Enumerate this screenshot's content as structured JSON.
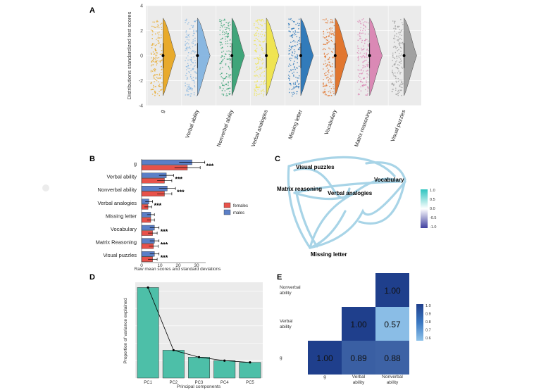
{
  "chart_data": [
    {
      "panel": "A",
      "type": "violin",
      "ylabel": "Distributions standardized test scores",
      "ylim": [
        -4,
        4
      ],
      "yticks": [
        -4,
        -2,
        0,
        2,
        4
      ],
      "grid": true,
      "categories": [
        "g",
        "Verbal ability",
        "Nonverbal ability",
        "Verbal analogies",
        "Missing letter",
        "Vocabulary",
        "Matrix reasoning",
        "Visual puzzles"
      ],
      "colors": [
        "#e8a317",
        "#7fb2e0",
        "#2e9e6e",
        "#f0e442",
        "#1f6fb5",
        "#e06a1b",
        "#d97fb0",
        "#9a9a9a"
      ],
      "medians": [
        0,
        0,
        0,
        0,
        0,
        0,
        0,
        0
      ],
      "range": [
        -3.2,
        3.0
      ]
    },
    {
      "panel": "B",
      "type": "bar",
      "orientation": "horizontal",
      "xlabel": "Raw mean scores and standard deviations",
      "xlim": [
        0,
        35
      ],
      "xticks": [
        0,
        10,
        20,
        30
      ],
      "categories": [
        "g",
        "Verbal ability",
        "Nonverbal ability",
        "Verbal analogies",
        "Missing letter",
        "Vocabulary",
        "Matrix Reasoning",
        "Visual puzzles"
      ],
      "series": [
        {
          "name": "males",
          "color": "#5b7fc7",
          "values": [
            27.5,
            13.5,
            14.0,
            4.0,
            5.0,
            7.0,
            7.0,
            7.0
          ],
          "sd": [
            7.0,
            4.0,
            4.5,
            2.0,
            2.0,
            2.5,
            2.5,
            2.5
          ]
        },
        {
          "name": "females",
          "color": "#e8524a",
          "values": [
            25.0,
            12.5,
            12.5,
            3.5,
            5.0,
            6.0,
            6.5,
            6.0
          ],
          "sd": [
            7.0,
            4.0,
            4.0,
            2.0,
            2.0,
            2.5,
            2.5,
            2.5
          ]
        }
      ],
      "significance": [
        "***",
        "***",
        "***",
        "***",
        "",
        "***",
        "***",
        "***"
      ]
    },
    {
      "panel": "C",
      "type": "network",
      "nodes": [
        "Visual puzzles",
        "Vocabulary",
        "Matrix reasoning",
        "Verbal analogies",
        "Missing letter"
      ],
      "colorbar_ticks": [
        "1.0",
        "0.5",
        "0.0",
        "-0.5",
        "-1.0"
      ]
    },
    {
      "panel": "D",
      "type": "bar",
      "xlabel": "Principal components",
      "ylabel": "Proportion of variance explained",
      "categories": [
        "PC1",
        "PC2",
        "PC3",
        "PC4",
        "PC5"
      ],
      "values": [
        0.52,
        0.16,
        0.12,
        0.1,
        0.09
      ],
      "ylim": [
        0,
        0.55
      ],
      "color": "#4dbfa8"
    },
    {
      "panel": "E",
      "type": "heatmap",
      "x_labels": [
        "g",
        "Verbal ability",
        "Nonverbal ability"
      ],
      "y_labels": [
        "g",
        "Verbal ability",
        "Nonverbal ability"
      ],
      "cells": [
        {
          "row": 0,
          "col": 0,
          "value": "1.00"
        },
        {
          "row": 0,
          "col": 1,
          "value": "0.89"
        },
        {
          "row": 0,
          "col": 2,
          "value": "0.88"
        },
        {
          "row": 1,
          "col": 1,
          "value": "1.00"
        },
        {
          "row": 1,
          "col": 2,
          "value": "0.57"
        },
        {
          "row": 2,
          "col": 2,
          "value": "1.00"
        }
      ],
      "colorbar_ticks": [
        "1.0",
        "0.9",
        "0.8",
        "0.7",
        "0.6"
      ]
    }
  ]
}
